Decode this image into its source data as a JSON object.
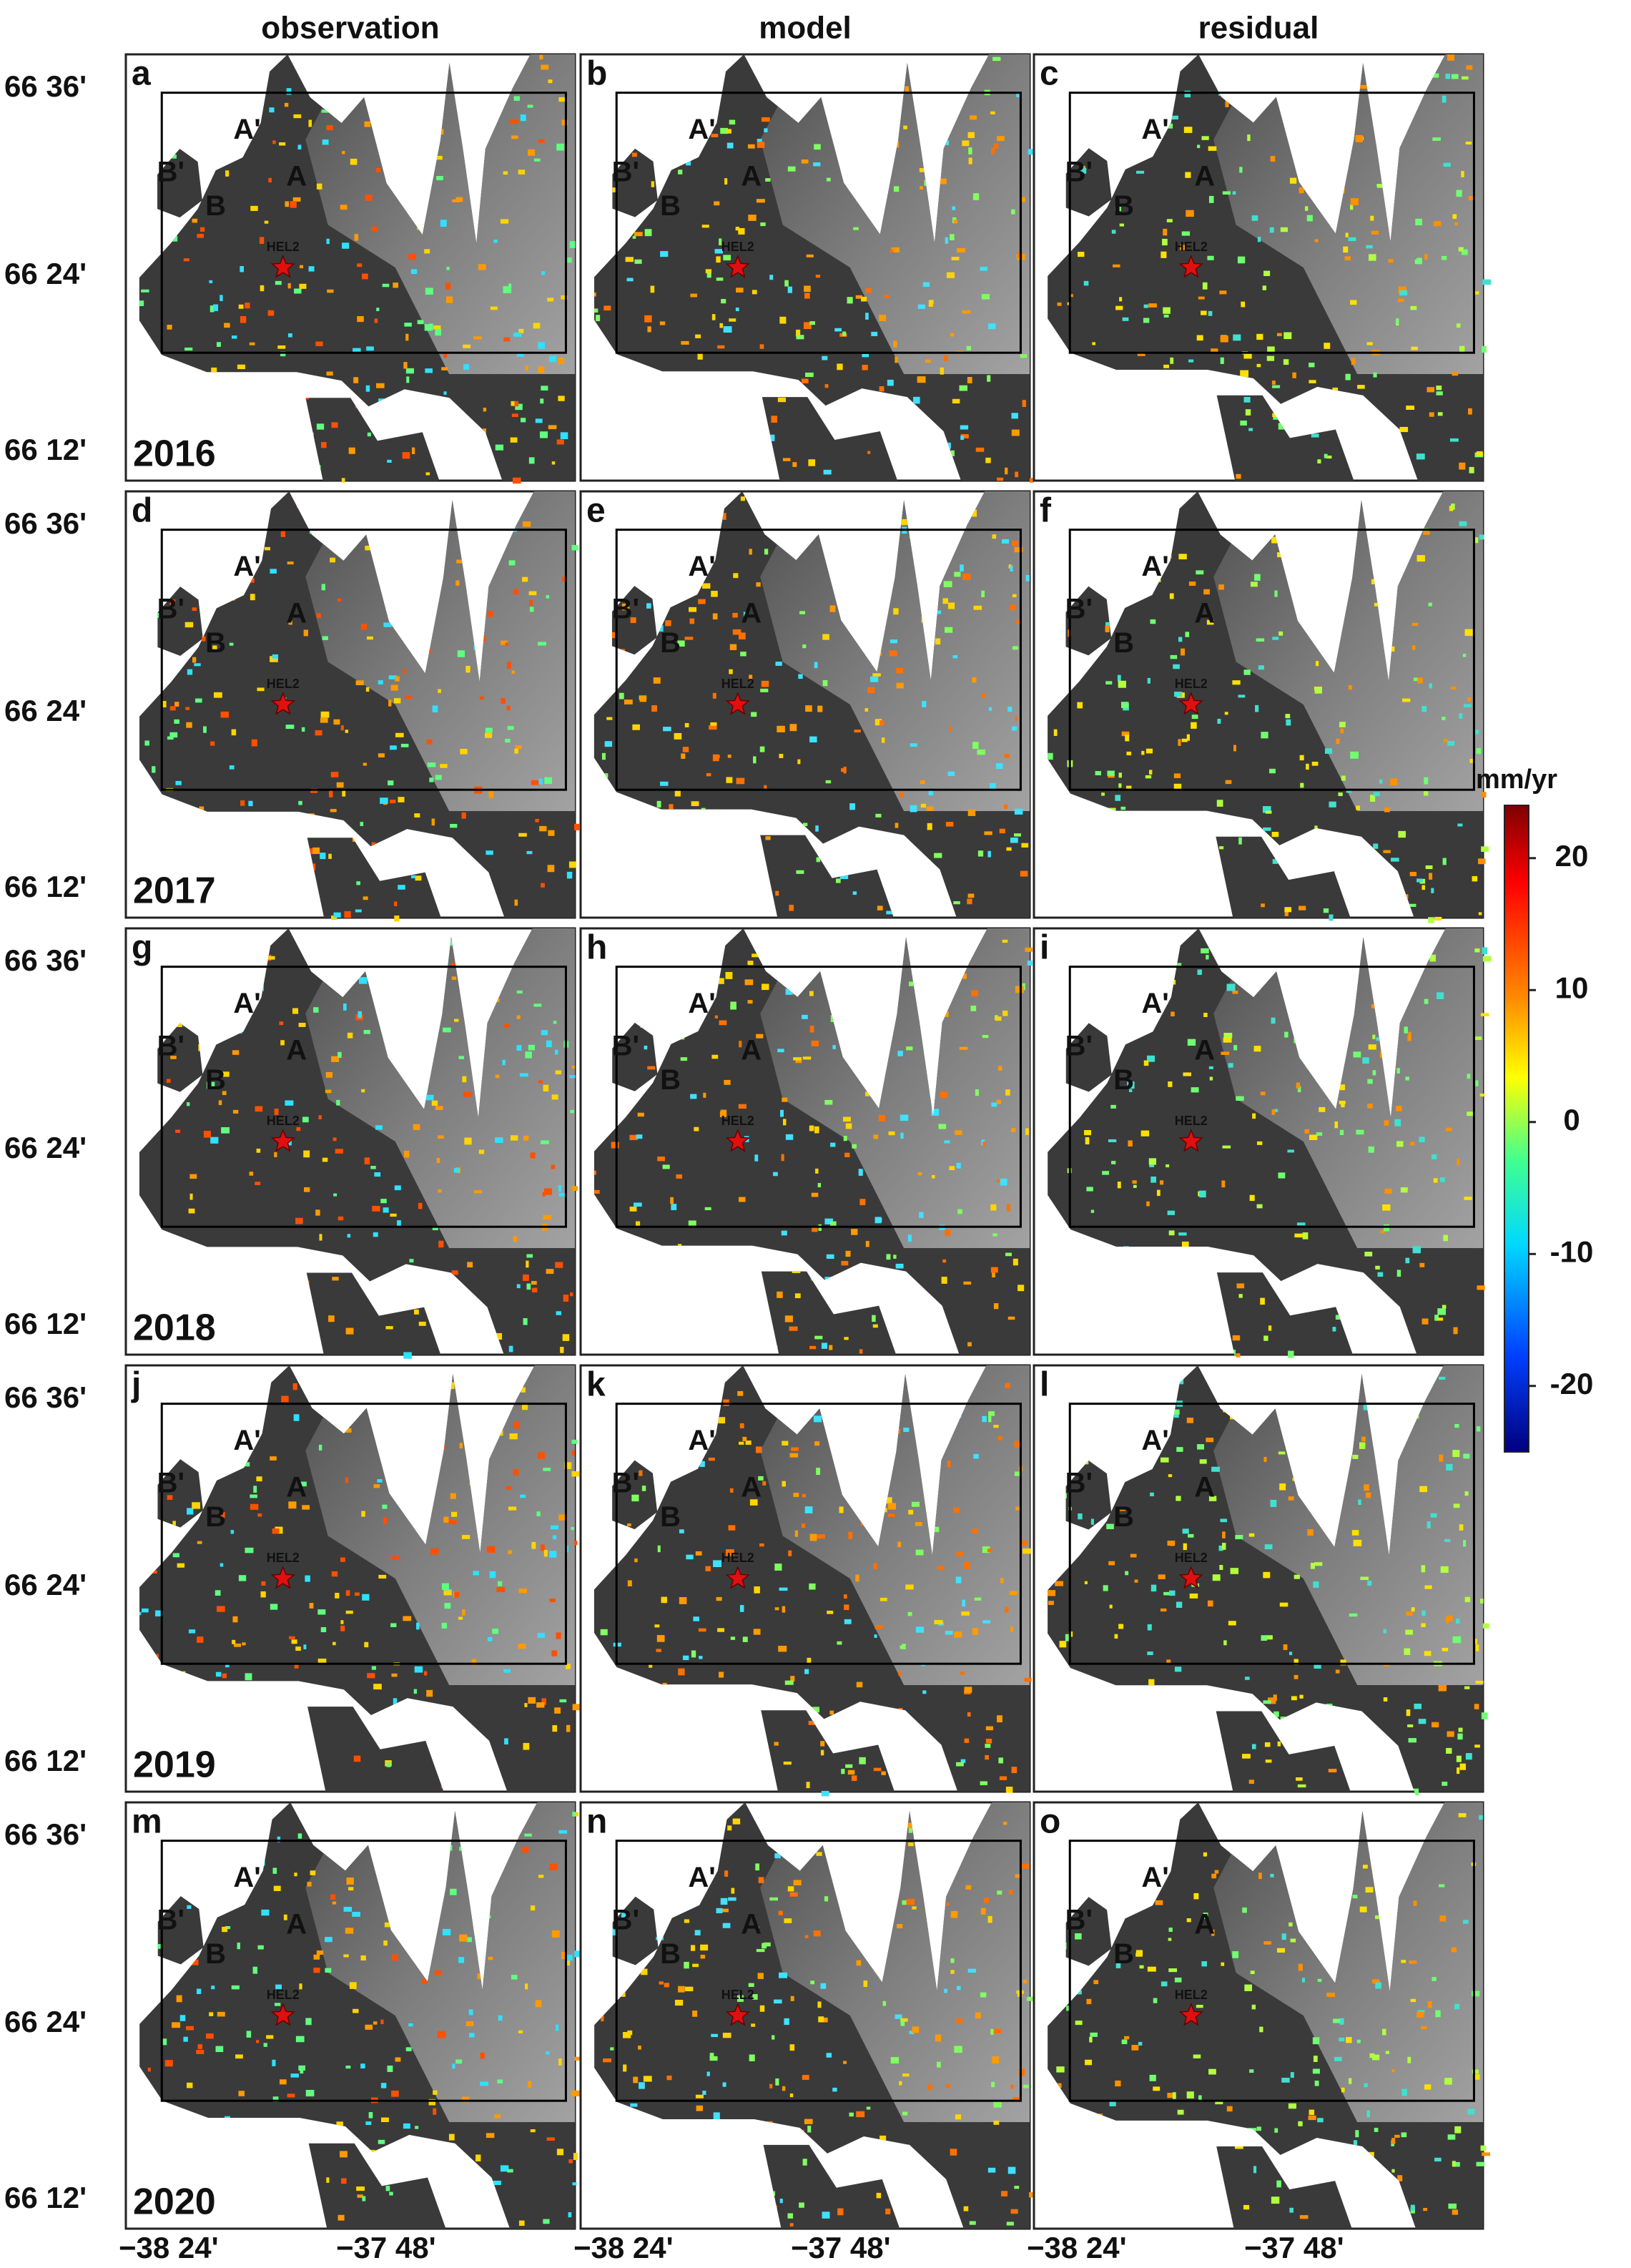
{
  "columns": [
    "observation",
    "model",
    "residual"
  ],
  "rows": [
    {
      "year": "2016",
      "panels": [
        "a",
        "b",
        "c"
      ]
    },
    {
      "year": "2017",
      "panels": [
        "d",
        "e",
        "f"
      ]
    },
    {
      "year": "2018",
      "panels": [
        "g",
        "h",
        "i"
      ]
    },
    {
      "year": "2019",
      "panels": [
        "j",
        "k",
        "l"
      ]
    },
    {
      "year": "2020",
      "panels": [
        "m",
        "n",
        "o"
      ]
    }
  ],
  "lat_labels": [
    "66 36'",
    "66 24'",
    "66 12'"
  ],
  "lon_labels": [
    "−38 24'",
    "−37 48'"
  ],
  "map_labels": {
    "a_prime": "A'",
    "a": "A",
    "b_prime": "B'",
    "b": "B",
    "station": "HEL2"
  },
  "colorbar": {
    "unit": "mm/yr",
    "range": [
      -25,
      24
    ],
    "ticks": [
      20,
      10,
      0,
      -10,
      -20
    ]
  }
}
